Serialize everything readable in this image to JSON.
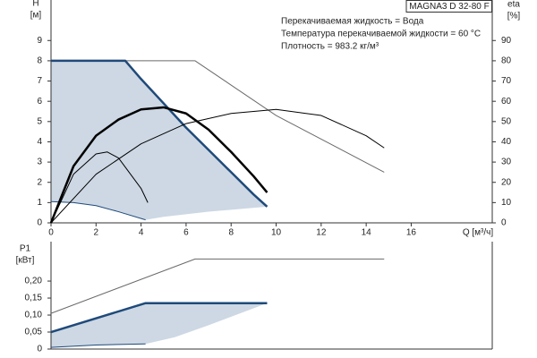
{
  "chart_data": [
    {
      "type": "line",
      "title": "MAGNA3 D 32-80 F",
      "annotations": [
        "Перекачиваемая жидкость = Вода",
        "Температура перекачиваемой жидкости = 60 °C",
        "Плотность = 983.2 кг/м³"
      ],
      "y_label": [
        "H",
        "[м]"
      ],
      "y2_label": [
        "eta",
        "[%]"
      ],
      "x_label": "Q [м³/ч]",
      "xlim": [
        0,
        19.6
      ],
      "ylim": [
        0,
        11
      ],
      "y2lim": [
        0,
        110
      ],
      "xticks": [
        0,
        2,
        4,
        6,
        8,
        10,
        12,
        14,
        16
      ],
      "yticks": [
        0,
        1,
        2,
        3,
        4,
        5,
        6,
        7,
        8,
        9
      ],
      "y2ticks": [
        0,
        10,
        20,
        30,
        40,
        50,
        60,
        70,
        80,
        90
      ],
      "areas": [
        {
          "color": "#cdd8e4",
          "x": [
            0,
            3.3,
            4,
            5,
            6,
            7,
            8,
            9,
            9.6,
            7,
            5,
            4.2,
            3,
            2,
            1,
            0
          ],
          "values": [
            8,
            8,
            7.1,
            5.9,
            4.7,
            3.6,
            2.5,
            1.4,
            0.8,
            0.55,
            0.3,
            0.15,
            0.55,
            0.85,
            1.0,
            1.05
          ]
        }
      ],
      "series": [
        {
          "color": "#6a6a6a",
          "style": "thin",
          "x": [
            0,
            6.4,
            10,
            14.8
          ],
          "values": [
            8,
            8,
            5.3,
            2.5
          ]
        },
        {
          "color": "#1f4a7a",
          "style": "thick",
          "x": [
            0,
            3.3,
            4,
            5,
            6,
            7,
            8,
            9,
            9.6
          ],
          "values": [
            8,
            8,
            7.1,
            5.9,
            4.7,
            3.6,
            2.5,
            1.4,
            0.8
          ]
        },
        {
          "color": "#1f4a7a",
          "style": "thin",
          "x": [
            0,
            1,
            2,
            3,
            4.2
          ],
          "values": [
            1.05,
            1.0,
            0.85,
            0.55,
            0.15
          ]
        },
        {
          "color": "#000000",
          "style": "thick",
          "x": [
            0,
            1,
            2,
            3,
            4,
            5,
            6,
            7,
            8,
            9,
            9.6
          ],
          "values": [
            0,
            2.8,
            4.3,
            5.1,
            5.6,
            5.7,
            5.4,
            4.6,
            3.5,
            2.3,
            1.5
          ]
        },
        {
          "color": "#000000",
          "style": "thin",
          "x": [
            0,
            1,
            2,
            2.5,
            3,
            4,
            4.3
          ],
          "values": [
            0,
            2.4,
            3.4,
            3.5,
            3.2,
            1.7,
            1.0
          ]
        },
        {
          "color": "#000000",
          "style": "thin",
          "x": [
            0,
            2,
            4,
            6,
            8,
            10,
            12,
            14,
            14.8
          ],
          "values": [
            0,
            2.4,
            3.9,
            4.9,
            5.4,
            5.6,
            5.3,
            4.3,
            3.7
          ]
        }
      ]
    },
    {
      "type": "line",
      "y_label": [
        "P1",
        "[кВт]"
      ],
      "xlim": [
        0,
        19.6
      ],
      "ylim": [
        0,
        0.316
      ],
      "yticks": [
        0,
        {
          "value": 0.05,
          "label": "0,05"
        },
        {
          "value": 0.1,
          "label": "0,10"
        },
        {
          "value": 0.15,
          "label": "0,15"
        },
        {
          "value": 0.2,
          "label": "0,20"
        }
      ],
      "areas": [
        {
          "color": "#cdd8e4",
          "x": [
            0,
            4.2,
            9.6,
            7,
            5.5,
            4.2,
            2,
            0
          ],
          "values": [
            0.05,
            0.135,
            0.135,
            0.07,
            0.035,
            0.015,
            0.012,
            0.005
          ]
        }
      ],
      "series": [
        {
          "color": "#6a6a6a",
          "style": "thin",
          "x": [
            0,
            6.4,
            14.8
          ],
          "values": [
            0.105,
            0.265,
            0.265
          ]
        },
        {
          "color": "#1f4a7a",
          "style": "thick",
          "x": [
            0,
            4.2,
            9.6
          ],
          "values": [
            0.05,
            0.135,
            0.135
          ]
        },
        {
          "color": "#1f4a7a",
          "style": "thin",
          "x": [
            0,
            2,
            4.2
          ],
          "values": [
            0.005,
            0.012,
            0.015
          ]
        }
      ]
    }
  ]
}
